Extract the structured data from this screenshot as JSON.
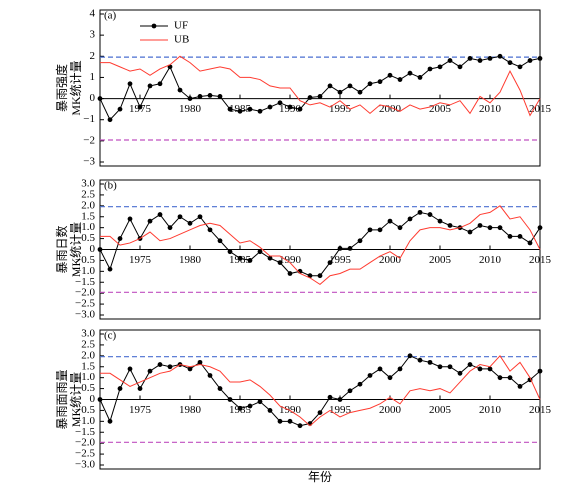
{
  "chart_data": [
    {
      "type": "line",
      "panel": "(a)",
      "ylabel": [
        "暴雨强度",
        "MK统计量"
      ],
      "legend": "upper left",
      "x": [
        1971,
        1972,
        1973,
        1974,
        1975,
        1976,
        1977,
        1978,
        1979,
        1980,
        1981,
        1982,
        1983,
        1984,
        1985,
        1986,
        1987,
        1988,
        1989,
        1990,
        1991,
        1992,
        1993,
        1994,
        1995,
        1996,
        1997,
        1998,
        1999,
        2000,
        2001,
        2002,
        2003,
        2004,
        2005,
        2006,
        2007,
        2008,
        2009,
        2010,
        2011,
        2012,
        2013,
        2014,
        2015
      ],
      "xlim": [
        1971,
        2015
      ],
      "xticks": [
        1975,
        1980,
        1985,
        1990,
        1995,
        2000,
        2005,
        2010,
        2015
      ],
      "ylim": [
        -3,
        4
      ],
      "yticks": [
        4,
        3,
        2,
        1,
        0,
        {
          "value": -1,
          "label": "−1"
        },
        {
          "value": -2,
          "label": "−2"
        },
        {
          "value": -3,
          "label": "−3"
        }
      ],
      "hlines": [
        {
          "value": 1.96,
          "color": "#4a6fd0"
        },
        {
          "value": -1.96,
          "color": "#c050c0"
        }
      ],
      "series": [
        {
          "name": "UF",
          "color": "#000000",
          "markers": true,
          "values": [
            0,
            -1,
            -0.5,
            0.7,
            -0.4,
            0.6,
            0.7,
            1.5,
            0.4,
            0,
            0.1,
            0.15,
            0.1,
            -0.5,
            -0.6,
            -0.5,
            -0.6,
            -0.4,
            -0.2,
            -0.4,
            -0.5,
            0.05,
            0.1,
            0.6,
            0.3,
            0.6,
            0.3,
            0.7,
            0.8,
            1.1,
            0.9,
            1.2,
            1.0,
            1.4,
            1.5,
            1.8,
            1.5,
            1.9,
            1.8,
            1.9,
            2.0,
            1.7,
            1.5,
            1.8,
            1.9
          ]
        },
        {
          "name": "UB",
          "color": "#ff3b30",
          "markers": false,
          "values": [
            1.7,
            1.7,
            1.5,
            1.3,
            1.4,
            1.1,
            1.4,
            1.6,
            2.0,
            1.7,
            1.3,
            1.4,
            1.5,
            1.4,
            1.0,
            1.0,
            0.9,
            0.6,
            0.5,
            0.5,
            -0.1,
            -0.3,
            -0.2,
            -0.4,
            -0.1,
            -0.5,
            -0.3,
            -0.7,
            -0.3,
            -0.4,
            -0.6,
            -0.3,
            -0.5,
            -0.4,
            -0.2,
            -0.3,
            -0.1,
            -0.7,
            0.1,
            -0.2,
            0.3,
            1.3,
            0.4,
            -0.8,
            0
          ]
        }
      ]
    },
    {
      "type": "line",
      "panel": "(b)",
      "ylabel": [
        "暴雨日数",
        "MK统计量"
      ],
      "x": [
        1971,
        1972,
        1973,
        1974,
        1975,
        1976,
        1977,
        1978,
        1979,
        1980,
        1981,
        1982,
        1983,
        1984,
        1985,
        1986,
        1987,
        1988,
        1989,
        1990,
        1991,
        1992,
        1993,
        1994,
        1995,
        1996,
        1997,
        1998,
        1999,
        2000,
        2001,
        2002,
        2003,
        2004,
        2005,
        2006,
        2007,
        2008,
        2009,
        2010,
        2011,
        2012,
        2013,
        2014,
        2015
      ],
      "xlim": [
        1971,
        2015
      ],
      "xticks": [
        1975,
        1980,
        1985,
        1990,
        1995,
        2000,
        2005,
        2010,
        2015
      ],
      "ylim": [
        -3,
        3
      ],
      "yticks": [
        {
          "value": 3,
          "label": "3.0"
        },
        {
          "value": 2.5,
          "label": "2.5"
        },
        {
          "value": 2,
          "label": "2.0"
        },
        {
          "value": 1.5,
          "label": "1.5"
        },
        {
          "value": 1,
          "label": "1.0"
        },
        0.5,
        0,
        {
          "value": -0.5,
          "label": "−0.5"
        },
        {
          "value": -1,
          "label": "−1.0"
        },
        {
          "value": -1.5,
          "label": "−1.5"
        },
        {
          "value": -2,
          "label": "−2.0"
        },
        {
          "value": -2.5,
          "label": "−2.5"
        },
        {
          "value": -3,
          "label": "−3.0"
        }
      ],
      "hlines": [
        {
          "value": 1.96,
          "color": "#4a6fd0"
        },
        {
          "value": -1.96,
          "color": "#c050c0"
        }
      ],
      "series": [
        {
          "color": "#000000",
          "markers": true,
          "values": [
            0,
            -0.9,
            0.5,
            1.4,
            0.5,
            1.3,
            1.6,
            1.0,
            1.5,
            1.2,
            1.5,
            0.9,
            0.4,
            -0.1,
            -0.4,
            -0.5,
            -0.1,
            -0.4,
            -0.6,
            -1.1,
            -1.0,
            -1.2,
            -1.2,
            -0.6,
            0.05,
            0.05,
            0.4,
            0.9,
            0.9,
            1.3,
            1.0,
            1.4,
            1.7,
            1.6,
            1.3,
            1.1,
            1.0,
            0.8,
            1.1,
            1.0,
            1.0,
            0.6,
            0.6,
            0.3,
            1.0
          ]
        },
        {
          "color": "#ff3b30",
          "markers": false,
          "values": [
            0.6,
            0.6,
            0.2,
            0.3,
            0.5,
            0.8,
            0.4,
            0.5,
            0.7,
            0.9,
            1.1,
            1.2,
            1.1,
            0.7,
            0.3,
            0.4,
            0.1,
            -0.3,
            -0.3,
            -0.6,
            -1.1,
            -1.3,
            -1.6,
            -1.2,
            -1.1,
            -0.9,
            -0.9,
            -0.6,
            -0.3,
            -0.1,
            -0.4,
            0.4,
            0.9,
            1.0,
            1.0,
            0.9,
            1.0,
            1.2,
            1.6,
            1.7,
            2.0,
            1.4,
            1.5,
            0.9,
            0
          ]
        }
      ]
    },
    {
      "type": "line",
      "panel": "(c)",
      "ylabel": [
        "暴雨面雨量",
        "MK统计量"
      ],
      "xlabel": "年份",
      "x": [
        1971,
        1972,
        1973,
        1974,
        1975,
        1976,
        1977,
        1978,
        1979,
        1980,
        1981,
        1982,
        1983,
        1984,
        1985,
        1986,
        1987,
        1988,
        1989,
        1990,
        1991,
        1992,
        1993,
        1994,
        1995,
        1996,
        1997,
        1998,
        1999,
        2000,
        2001,
        2002,
        2003,
        2004,
        2005,
        2006,
        2007,
        2008,
        2009,
        2010,
        2011,
        2012,
        2013,
        2014,
        2015
      ],
      "xlim": [
        1971,
        2015
      ],
      "xticks": [
        1975,
        1980,
        1985,
        1990,
        1995,
        2000,
        2005,
        2010,
        2015
      ],
      "ylim": [
        -3,
        3
      ],
      "yticks": [
        {
          "value": 3,
          "label": "3.0"
        },
        {
          "value": 2.5,
          "label": "2.5"
        },
        {
          "value": 2,
          "label": "2.0"
        },
        {
          "value": 1.5,
          "label": "1.5"
        },
        {
          "value": 1,
          "label": "1.0"
        },
        0.5,
        0,
        {
          "value": -0.5,
          "label": "−0.5"
        },
        {
          "value": -1,
          "label": "−1.0"
        },
        {
          "value": -1.5,
          "label": "−1.5"
        },
        {
          "value": -2,
          "label": "−2.0"
        },
        {
          "value": -2.5,
          "label": "−2.5"
        },
        {
          "value": -3,
          "label": "−3.0"
        }
      ],
      "hlines": [
        {
          "value": 1.96,
          "color": "#4a6fd0"
        },
        {
          "value": -1.96,
          "color": "#c050c0"
        }
      ],
      "series": [
        {
          "color": "#000000",
          "markers": true,
          "values": [
            0,
            -1,
            0.5,
            1.4,
            0.5,
            1.3,
            1.6,
            1.5,
            1.6,
            1.4,
            1.7,
            1.1,
            0.5,
            0,
            -0.4,
            -0.3,
            -0.1,
            -0.5,
            -1.0,
            -1.0,
            -1.2,
            -1.1,
            -0.6,
            0.1,
            0,
            0.4,
            0.7,
            1.1,
            1.4,
            1.0,
            1.4,
            2.0,
            1.8,
            1.7,
            1.5,
            1.5,
            1.2,
            1.6,
            1.4,
            1.4,
            1.0,
            1.0,
            0.6,
            0.9,
            1.3
          ]
        },
        {
          "color": "#ff3b30",
          "markers": false,
          "values": [
            1.2,
            1.2,
            0.9,
            0.6,
            0.8,
            1.0,
            1.2,
            1.3,
            1.6,
            1.5,
            1.6,
            1.5,
            1.3,
            0.8,
            0.8,
            0.9,
            0.6,
            0.2,
            -0.3,
            -0.5,
            -0.8,
            -1.2,
            -0.8,
            -0.5,
            -0.8,
            -0.6,
            -0.5,
            -0.4,
            -0.2,
            0.1,
            -0.2,
            0.4,
            0.5,
            0.4,
            0.5,
            0.3,
            0.8,
            1.3,
            1.6,
            1.5,
            2.0,
            1.3,
            1.7,
            1.0,
            0
          ]
        }
      ]
    }
  ]
}
